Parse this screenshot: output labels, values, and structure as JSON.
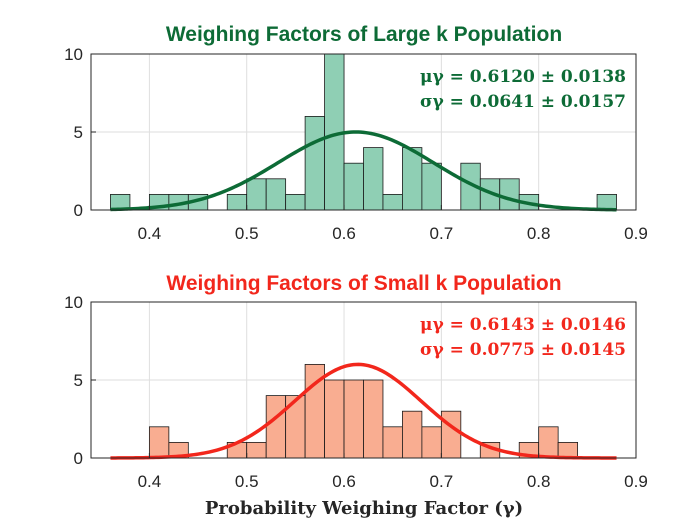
{
  "chart_data": [
    {
      "type": "histogram",
      "title": "Weighing Factors of Large k Population",
      "title_color": "#0d6b36",
      "bar_color": "#8fcfb4",
      "curve_color": "#0d6b36",
      "stats": {
        "mu_text": "μγ = 0.6120 ± 0.0138",
        "sigma_text": "σγ = 0.0641 ± 0.0157"
      },
      "fit": {
        "type": "normal",
        "mean": 0.612,
        "peak": 5.0
      },
      "bin_width": 0.02,
      "bins": [
        {
          "x0": 0.36,
          "count": 1
        },
        {
          "x0": 0.4,
          "count": 1
        },
        {
          "x0": 0.42,
          "count": 1
        },
        {
          "x0": 0.44,
          "count": 1
        },
        {
          "x0": 0.48,
          "count": 1
        },
        {
          "x0": 0.5,
          "count": 2
        },
        {
          "x0": 0.52,
          "count": 2
        },
        {
          "x0": 0.54,
          "count": 1
        },
        {
          "x0": 0.56,
          "count": 6
        },
        {
          "x0": 0.58,
          "count": 10
        },
        {
          "x0": 0.6,
          "count": 3
        },
        {
          "x0": 0.62,
          "count": 4
        },
        {
          "x0": 0.64,
          "count": 1
        },
        {
          "x0": 0.66,
          "count": 4
        },
        {
          "x0": 0.68,
          "count": 3
        },
        {
          "x0": 0.72,
          "count": 3
        },
        {
          "x0": 0.74,
          "count": 2
        },
        {
          "x0": 0.76,
          "count": 2
        },
        {
          "x0": 0.78,
          "count": 1
        },
        {
          "x0": 0.86,
          "count": 1
        }
      ],
      "xlim": [
        0.34,
        0.9
      ],
      "ylim": [
        0,
        10
      ],
      "xticks": [
        0.4,
        0.5,
        0.6,
        0.7,
        0.8,
        0.9
      ],
      "xtick_labels": [
        "0.4",
        "0.5",
        "0.6",
        "0.7",
        "0.8",
        "0.9"
      ],
      "yticks": [
        0,
        5,
        10
      ],
      "ytick_labels": [
        "0",
        "5",
        "10"
      ],
      "grid": true
    },
    {
      "type": "histogram",
      "title": "Weighing Factors of Small k Population",
      "title_color": "#f2271c",
      "bar_color": "#f9ad91",
      "curve_color": "#f2271c",
      "stats": {
        "mu_text": "μγ = 0.6143 ± 0.0146",
        "sigma_text": "σγ = 0.0775 ± 0.0145"
      },
      "fit": {
        "type": "normal",
        "mean": 0.6143,
        "peak": 6.0
      },
      "bin_width": 0.02,
      "bins": [
        {
          "x0": 0.4,
          "count": 2
        },
        {
          "x0": 0.42,
          "count": 1
        },
        {
          "x0": 0.48,
          "count": 1
        },
        {
          "x0": 0.5,
          "count": 1
        },
        {
          "x0": 0.52,
          "count": 4
        },
        {
          "x0": 0.54,
          "count": 4
        },
        {
          "x0": 0.56,
          "count": 6
        },
        {
          "x0": 0.58,
          "count": 5
        },
        {
          "x0": 0.6,
          "count": 5
        },
        {
          "x0": 0.62,
          "count": 5
        },
        {
          "x0": 0.64,
          "count": 2
        },
        {
          "x0": 0.66,
          "count": 3
        },
        {
          "x0": 0.68,
          "count": 2
        },
        {
          "x0": 0.7,
          "count": 3
        },
        {
          "x0": 0.74,
          "count": 1
        },
        {
          "x0": 0.78,
          "count": 1
        },
        {
          "x0": 0.8,
          "count": 2
        },
        {
          "x0": 0.82,
          "count": 1
        }
      ],
      "xlim": [
        0.34,
        0.9
      ],
      "ylim": [
        0,
        10
      ],
      "xticks": [
        0.4,
        0.5,
        0.6,
        0.7,
        0.8,
        0.9
      ],
      "xtick_labels": [
        "0.4",
        "0.5",
        "0.6",
        "0.7",
        "0.8",
        "0.9"
      ],
      "yticks": [
        0,
        5,
        10
      ],
      "ytick_labels": [
        "0",
        "5",
        "10"
      ],
      "grid": true
    }
  ],
  "xlabel": "Probability Weighing Factor (γ)"
}
